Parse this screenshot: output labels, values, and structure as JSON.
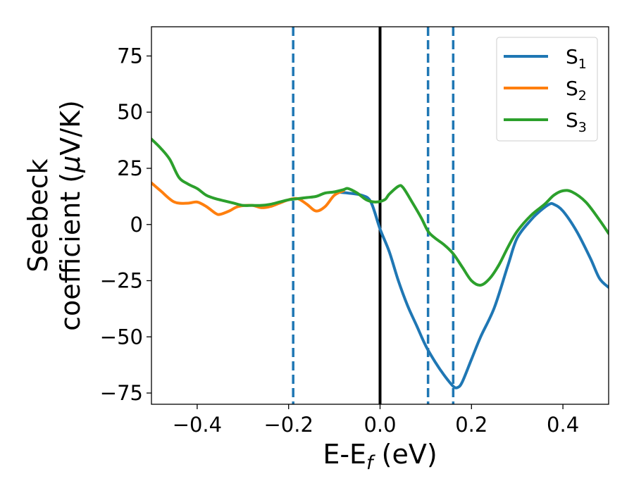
{
  "chart_data": {
    "type": "line",
    "xlabel": {
      "main": "E-E",
      "sub": "f",
      "tail": " (eV)"
    },
    "ylabel": {
      "line1": "Seebeck",
      "line2_pre": "coefficient  (",
      "line2_mu": "μ",
      "line2_post": "V/K)"
    },
    "xlim": [
      -0.5,
      0.5
    ],
    "ylim": [
      -80,
      88
    ],
    "x_ticks": [
      {
        "value": -0.4,
        "label": "−0.4"
      },
      {
        "value": -0.2,
        "label": "−0.2"
      },
      {
        "value": 0.0,
        "label": "0.0"
      },
      {
        "value": 0.2,
        "label": "0.2"
      },
      {
        "value": 0.4,
        "label": "0.4"
      }
    ],
    "y_ticks": [
      {
        "value": 75,
        "label": "75"
      },
      {
        "value": 50,
        "label": "50"
      },
      {
        "value": 25,
        "label": "25"
      },
      {
        "value": 0,
        "label": "0"
      },
      {
        "value": -25,
        "label": "−25"
      },
      {
        "value": -50,
        "label": "−50"
      },
      {
        "value": -75,
        "label": "−75"
      }
    ],
    "grid": false,
    "legend_position": "top-right",
    "reference_lines": [
      {
        "x": 0.0,
        "style": "solid",
        "color": "#000000"
      },
      {
        "x": -0.19,
        "style": "dashed",
        "color": "#1f77b4"
      },
      {
        "x": 0.105,
        "style": "dashed",
        "color": "#1f77b4"
      },
      {
        "x": 0.16,
        "style": "dashed",
        "color": "#1f77b4"
      }
    ],
    "series": [
      {
        "name": "S",
        "sub": "1",
        "color": "#1f77b4",
        "points": [
          [
            -0.1,
            14.5
          ],
          [
            -0.07,
            14
          ],
          [
            -0.04,
            13
          ],
          [
            -0.02,
            10
          ],
          [
            0.0,
            -2
          ],
          [
            0.02,
            -12
          ],
          [
            0.04,
            -25
          ],
          [
            0.06,
            -36
          ],
          [
            0.08,
            -45
          ],
          [
            0.1,
            -54
          ],
          [
            0.12,
            -61
          ],
          [
            0.14,
            -67
          ],
          [
            0.16,
            -72
          ],
          [
            0.17,
            -72.5
          ],
          [
            0.18,
            -70
          ],
          [
            0.2,
            -60
          ],
          [
            0.22,
            -50
          ],
          [
            0.25,
            -37
          ],
          [
            0.28,
            -18
          ],
          [
            0.3,
            -6
          ],
          [
            0.33,
            2
          ],
          [
            0.35,
            6
          ],
          [
            0.37,
            9
          ],
          [
            0.38,
            9
          ],
          [
            0.4,
            6
          ],
          [
            0.43,
            -3
          ],
          [
            0.46,
            -15
          ],
          [
            0.48,
            -24
          ],
          [
            0.5,
            -28
          ]
        ]
      },
      {
        "name": "S",
        "sub": "2",
        "color": "#ff7f0e",
        "points": [
          [
            -0.5,
            18.5
          ],
          [
            -0.48,
            15
          ],
          [
            -0.45,
            10
          ],
          [
            -0.42,
            9.5
          ],
          [
            -0.4,
            10
          ],
          [
            -0.38,
            8
          ],
          [
            -0.36,
            5
          ],
          [
            -0.35,
            4.5
          ],
          [
            -0.33,
            6
          ],
          [
            -0.31,
            8
          ],
          [
            -0.28,
            8.5
          ],
          [
            -0.26,
            7.5
          ],
          [
            -0.24,
            8
          ],
          [
            -0.22,
            9.5
          ],
          [
            -0.2,
            11
          ],
          [
            -0.18,
            11.5
          ],
          [
            -0.16,
            9
          ],
          [
            -0.14,
            6
          ],
          [
            -0.12,
            8
          ],
          [
            -0.1,
            13
          ],
          [
            -0.08,
            15
          ]
        ]
      },
      {
        "name": "S",
        "sub": "3",
        "color": "#2ca02c",
        "points": [
          [
            -0.5,
            38
          ],
          [
            -0.48,
            34
          ],
          [
            -0.46,
            29
          ],
          [
            -0.44,
            21
          ],
          [
            -0.42,
            18
          ],
          [
            -0.4,
            16
          ],
          [
            -0.38,
            13
          ],
          [
            -0.36,
            11.5
          ],
          [
            -0.34,
            10.5
          ],
          [
            -0.32,
            9.5
          ],
          [
            -0.3,
            8.5
          ],
          [
            -0.28,
            8.5
          ],
          [
            -0.26,
            8.5
          ],
          [
            -0.24,
            9
          ],
          [
            -0.22,
            10
          ],
          [
            -0.2,
            11
          ],
          [
            -0.18,
            11.5
          ],
          [
            -0.16,
            12
          ],
          [
            -0.14,
            12.5
          ],
          [
            -0.12,
            14
          ],
          [
            -0.1,
            14.5
          ],
          [
            -0.08,
            15.5
          ],
          [
            -0.07,
            16
          ],
          [
            -0.05,
            14
          ],
          [
            -0.03,
            11
          ],
          [
            -0.01,
            10
          ],
          [
            0.01,
            11
          ],
          [
            0.02,
            13.5
          ],
          [
            0.04,
            17
          ],
          [
            0.05,
            16.5
          ],
          [
            0.07,
            10
          ],
          [
            0.09,
            3
          ],
          [
            0.105,
            -3
          ],
          [
            0.12,
            -6
          ],
          [
            0.14,
            -9
          ],
          [
            0.16,
            -13
          ],
          [
            0.18,
            -19
          ],
          [
            0.2,
            -25
          ],
          [
            0.22,
            -27
          ],
          [
            0.24,
            -24
          ],
          [
            0.26,
            -18
          ],
          [
            0.28,
            -10
          ],
          [
            0.3,
            -3
          ],
          [
            0.33,
            4
          ],
          [
            0.36,
            9
          ],
          [
            0.38,
            13
          ],
          [
            0.4,
            15
          ],
          [
            0.42,
            14.5
          ],
          [
            0.45,
            10
          ],
          [
            0.48,
            2
          ],
          [
            0.5,
            -4
          ]
        ]
      }
    ]
  }
}
